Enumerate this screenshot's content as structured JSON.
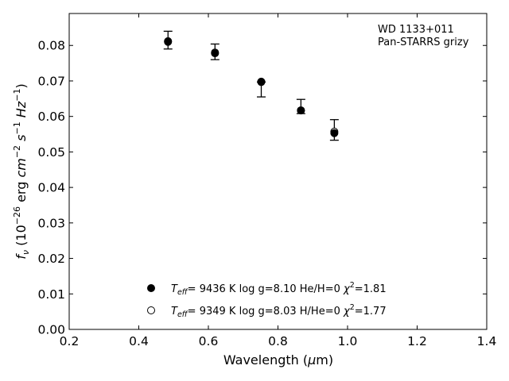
{
  "chart_data": {
    "type": "scatter",
    "xlabel": "Wavelength (μm)",
    "ylabel": "f_ν (10^-26 erg cm^-2 s^-1 Hz^-1)",
    "xlim": [
      0.2,
      1.4
    ],
    "ylim": [
      0.0,
      0.089
    ],
    "xticks": [
      0.2,
      0.4,
      0.6,
      0.8,
      1.0,
      1.2,
      1.4
    ],
    "xtick_labels": [
      "0.2",
      "0.4",
      "0.6",
      "0.8",
      "1.0",
      "1.2",
      "1.4"
    ],
    "yticks": [
      0.0,
      0.01,
      0.02,
      0.03,
      0.04,
      0.05,
      0.06,
      0.07,
      0.08
    ],
    "ytick_labels": [
      "0.00",
      "0.01",
      "0.02",
      "0.03",
      "0.04",
      "0.05",
      "0.06",
      "0.07",
      "0.08"
    ],
    "grid": false,
    "annotation": [
      "WD 1133+011",
      "Pan-STARRS grizy"
    ],
    "observed": {
      "x": [
        0.484,
        0.619,
        0.752,
        0.866,
        0.962
      ],
      "y": [
        0.0815,
        0.0782,
        0.0697,
        0.0623,
        0.0563
      ],
      "err_low": [
        0.0025,
        0.0022,
        0.0042,
        0.0015,
        0.003
      ],
      "err_high": [
        0.0025,
        0.0022,
        0.0,
        0.0025,
        0.0028
      ]
    },
    "series": [
      {
        "name": "Teff= 9436 K log g=8.10 He/H=0 χ2=1.81",
        "marker": "filled-circle",
        "x": [
          0.484,
          0.619,
          0.752,
          0.866,
          0.962
        ],
        "y": [
          0.081,
          0.0778,
          0.0698,
          0.0617,
          0.0553
        ]
      },
      {
        "name": "Teff= 9349 K log g=8.03 H/He=0 χ2=1.77",
        "marker": "open-circle",
        "x": [
          0.484,
          0.619,
          0.752,
          0.866,
          0.962
        ],
        "y": [
          0.0812,
          0.078,
          0.0697,
          0.0617,
          0.0557
        ]
      }
    ],
    "legend": {
      "placement": "lower-center",
      "entries": [
        {
          "teff": "9436 K",
          "logg": "log g=8.10",
          "comp": "He/H=0",
          "chi2": "=1.81"
        },
        {
          "teff": "9349 K",
          "logg": "log g=8.03",
          "comp": "H/He=0",
          "chi2": "=1.77"
        }
      ]
    }
  }
}
